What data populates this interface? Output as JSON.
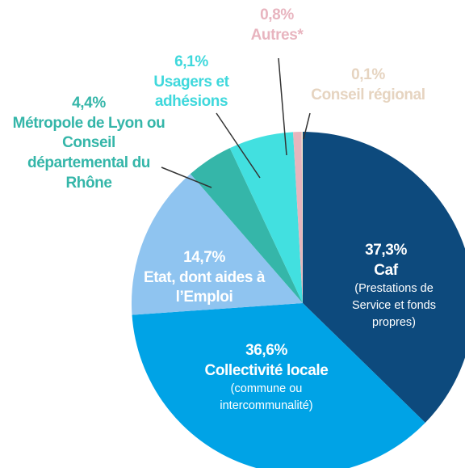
{
  "chart_data": {
    "type": "pie",
    "categories": [
      "Caf",
      "Collectivité locale",
      "Etat, dont aides à l’Emploi",
      "Métropole de Lyon ou Conseil départemental du Rhône",
      "Usagers et adhésions",
      "Autres*",
      "Conseil régional"
    ],
    "notes": [
      "(Prestations de Service et fonds propres)",
      "(commune ou intercommunalité)",
      null,
      null,
      null,
      null,
      null
    ],
    "values": [
      37.3,
      36.6,
      14.7,
      4.4,
      6.1,
      0.8,
      0.1
    ],
    "value_labels": [
      "37,3%",
      "36,6%",
      "14,7%",
      "4,4%",
      "6,1%",
      "0,8%",
      "0,1%"
    ],
    "colors": [
      "#0d4a7d",
      "#00a3e6",
      "#8fc4f0",
      "#35b6a9",
      "#42e0e0",
      "#e6b5bd",
      "#f7ecd0"
    ],
    "label_colors": [
      "#ffffff",
      "#ffffff",
      "#ffffff",
      "#35b6a9",
      "#3fd8dc",
      "#e8b4bf",
      "#e6d4c0"
    ]
  }
}
